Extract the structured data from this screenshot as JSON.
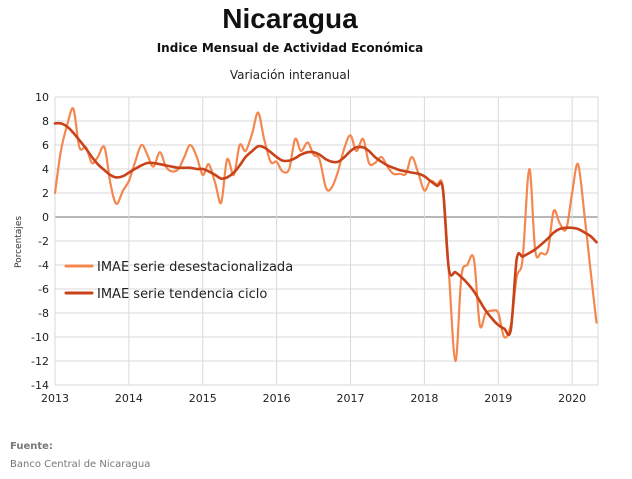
{
  "colors": {
    "desest": "#f4874f",
    "tendencia": "#c8421a",
    "grid": "#d9d9d9",
    "zero": "#8c8c8c"
  },
  "chart_data": {
    "type": "line",
    "title": "Nicaragua",
    "subtitle": "Indice Mensual de  Actividad Económica",
    "subtitle2": "Variación interanual",
    "xlabel": "",
    "ylabel": "Porcentajes",
    "xlim": [
      2013.0,
      2020.35
    ],
    "ylim": [
      -14,
      10
    ],
    "yticks": [
      -14,
      -12,
      -10,
      -8,
      -6,
      -4,
      -2,
      0,
      2,
      4,
      6,
      8,
      10
    ],
    "xticks": [
      2013,
      2014,
      2015,
      2016,
      2017,
      2018,
      2019,
      2020
    ],
    "grid": true,
    "legend_position": "center-left",
    "series": [
      {
        "name": "IMAE serie desestacionalizada",
        "x": [
          2013.0,
          2013.08,
          2013.17,
          2013.25,
          2013.33,
          2013.42,
          2013.5,
          2013.58,
          2013.67,
          2013.75,
          2013.83,
          2013.92,
          2014.0,
          2014.08,
          2014.17,
          2014.25,
          2014.33,
          2014.42,
          2014.5,
          2014.58,
          2014.67,
          2014.75,
          2014.83,
          2014.92,
          2015.0,
          2015.08,
          2015.17,
          2015.25,
          2015.33,
          2015.42,
          2015.5,
          2015.58,
          2015.67,
          2015.75,
          2015.83,
          2015.92,
          2016.0,
          2016.08,
          2016.17,
          2016.25,
          2016.33,
          2016.42,
          2016.5,
          2016.58,
          2016.67,
          2016.75,
          2016.83,
          2016.92,
          2017.0,
          2017.08,
          2017.17,
          2017.25,
          2017.33,
          2017.42,
          2017.5,
          2017.58,
          2017.67,
          2017.75,
          2017.83,
          2017.92,
          2018.0,
          2018.08,
          2018.17,
          2018.25,
          2018.33,
          2018.42,
          2018.5,
          2018.58,
          2018.67,
          2018.75,
          2018.83,
          2018.92,
          2019.0,
          2019.08,
          2019.17,
          2019.25,
          2019.33,
          2019.42,
          2019.5,
          2019.58,
          2019.67,
          2019.75,
          2019.83,
          2019.92,
          2020.0,
          2020.08,
          2020.17,
          2020.25,
          2020.33
        ],
        "values": [
          2.0,
          5.5,
          7.8,
          9.0,
          5.8,
          5.8,
          4.5,
          5.0,
          5.8,
          2.8,
          1.1,
          2.2,
          3.0,
          4.5,
          6.0,
          5.2,
          4.2,
          5.4,
          4.2,
          3.8,
          4.0,
          5.0,
          6.0,
          5.0,
          3.5,
          4.4,
          2.8,
          1.2,
          4.8,
          3.5,
          6.0,
          5.5,
          7.0,
          8.7,
          6.5,
          4.6,
          4.6,
          3.8,
          4.0,
          6.5,
          5.5,
          6.2,
          5.2,
          4.8,
          2.4,
          2.5,
          3.8,
          5.8,
          6.8,
          5.5,
          6.5,
          4.5,
          4.5,
          5.0,
          4.2,
          3.6,
          3.6,
          3.6,
          5.0,
          3.6,
          2.2,
          3.0,
          2.7,
          2.5,
          -4.5,
          -12.0,
          -5.0,
          -4.0,
          -3.5,
          -9.0,
          -8.0,
          -7.8,
          -8.0,
          -10.0,
          -9.0,
          -5.0,
          -3.5,
          4.0,
          -2.8,
          -3.0,
          -2.8,
          0.5,
          -0.5,
          -1.0,
          2.0,
          4.4,
          0.0,
          -4.5,
          -8.8
        ]
      },
      {
        "name": "IMAE serie  tendencia ciclo",
        "x": [
          2013.0,
          2013.08,
          2013.17,
          2013.25,
          2013.33,
          2013.42,
          2013.5,
          2013.58,
          2013.67,
          2013.75,
          2013.83,
          2013.92,
          2014.0,
          2014.08,
          2014.17,
          2014.25,
          2014.33,
          2014.42,
          2014.5,
          2014.58,
          2014.67,
          2014.75,
          2014.83,
          2014.92,
          2015.0,
          2015.08,
          2015.17,
          2015.25,
          2015.33,
          2015.42,
          2015.5,
          2015.58,
          2015.67,
          2015.75,
          2015.83,
          2015.92,
          2016.0,
          2016.08,
          2016.17,
          2016.25,
          2016.33,
          2016.42,
          2016.5,
          2016.58,
          2016.67,
          2016.75,
          2016.83,
          2016.92,
          2017.0,
          2017.08,
          2017.17,
          2017.25,
          2017.33,
          2017.42,
          2017.5,
          2017.58,
          2017.67,
          2017.75,
          2017.83,
          2017.92,
          2018.0,
          2018.08,
          2018.17,
          2018.25,
          2018.33,
          2018.42,
          2018.5,
          2018.58,
          2018.67,
          2018.75,
          2018.83,
          2018.92,
          2019.0,
          2019.08,
          2019.17,
          2019.25,
          2019.33,
          2019.42,
          2019.5,
          2019.58,
          2019.67,
          2019.75,
          2019.83,
          2019.92,
          2020.0,
          2020.08,
          2020.17,
          2020.25,
          2020.33
        ],
        "values": [
          7.8,
          7.8,
          7.5,
          7.0,
          6.4,
          5.7,
          5.0,
          4.4,
          3.9,
          3.5,
          3.3,
          3.4,
          3.7,
          4.0,
          4.3,
          4.5,
          4.5,
          4.4,
          4.3,
          4.2,
          4.1,
          4.1,
          4.1,
          4.0,
          4.0,
          3.8,
          3.5,
          3.2,
          3.3,
          3.7,
          4.3,
          5.0,
          5.5,
          5.9,
          5.8,
          5.4,
          5.0,
          4.7,
          4.7,
          4.9,
          5.2,
          5.4,
          5.4,
          5.2,
          4.8,
          4.6,
          4.6,
          5.0,
          5.5,
          5.8,
          5.8,
          5.5,
          5.0,
          4.6,
          4.3,
          4.1,
          3.9,
          3.8,
          3.7,
          3.6,
          3.4,
          3.0,
          2.6,
          2.3,
          -4.3,
          -4.6,
          -5.0,
          -5.5,
          -6.2,
          -7.0,
          -7.8,
          -8.5,
          -9.0,
          -9.3,
          -9.4,
          -3.5,
          -3.3,
          -3.0,
          -2.7,
          -2.3,
          -1.8,
          -1.3,
          -1.0,
          -0.9,
          -0.9,
          -1.0,
          -1.3,
          -1.6,
          -2.1
        ]
      }
    ]
  },
  "source": {
    "label": "Fuente:",
    "text": "Banco Central de Nicaragua"
  }
}
